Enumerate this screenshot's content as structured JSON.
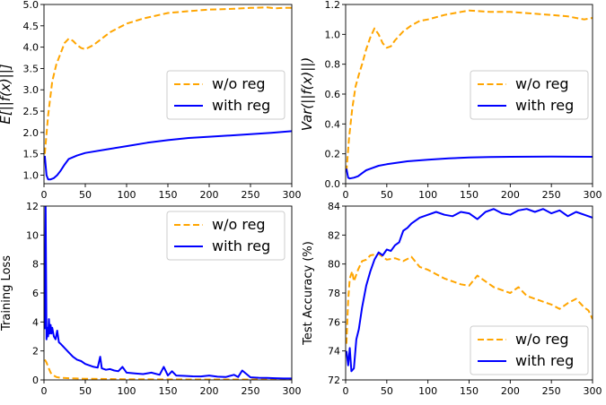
{
  "colors": {
    "wo_reg": "#FFA500",
    "with_reg": "#0000FF"
  },
  "chart_data": [
    {
      "type": "line",
      "panel": "top-left",
      "ylabel": "E[||f(x)||]",
      "xlim": [
        0,
        300
      ],
      "ylim": [
        0.8,
        5.0
      ],
      "xticks": [
        0,
        50,
        100,
        150,
        200,
        250,
        300
      ],
      "yticks": [
        1.0,
        1.5,
        2.0,
        2.5,
        3.0,
        3.5,
        4.0,
        4.5,
        5.0
      ],
      "ytick_labels": [
        "1.0",
        "1.5",
        "2.0",
        "2.5",
        "3.0",
        "3.5",
        "4.0",
        "4.5",
        "5.0"
      ],
      "legend": "center-right",
      "series": [
        {
          "name": "w/o reg",
          "style": "dashed",
          "x": [
            1,
            5,
            10,
            15,
            20,
            25,
            30,
            35,
            40,
            45,
            50,
            60,
            70,
            80,
            100,
            120,
            150,
            180,
            200,
            230,
            250,
            270,
            280,
            290,
            300
          ],
          "y": [
            1.5,
            2.4,
            3.2,
            3.6,
            3.85,
            4.1,
            4.2,
            4.15,
            4.05,
            3.98,
            3.95,
            4.05,
            4.2,
            4.35,
            4.55,
            4.67,
            4.8,
            4.85,
            4.88,
            4.9,
            4.92,
            4.93,
            4.91,
            4.92,
            4.92
          ]
        },
        {
          "name": "with reg",
          "style": "solid",
          "x": [
            1,
            3,
            5,
            8,
            12,
            16,
            20,
            25,
            30,
            40,
            50,
            75,
            100,
            125,
            150,
            175,
            200,
            225,
            250,
            275,
            300
          ],
          "y": [
            1.45,
            1.0,
            0.9,
            0.9,
            0.93,
            1.0,
            1.1,
            1.25,
            1.38,
            1.46,
            1.52,
            1.6,
            1.68,
            1.76,
            1.82,
            1.87,
            1.9,
            1.93,
            1.96,
            1.99,
            2.03
          ]
        }
      ]
    },
    {
      "type": "line",
      "panel": "top-right",
      "ylabel": "Var(||f(x)||)",
      "xlim": [
        0,
        300
      ],
      "ylim": [
        0.0,
        1.2
      ],
      "xticks": [
        0,
        50,
        100,
        150,
        200,
        250,
        300
      ],
      "yticks": [
        0.0,
        0.2,
        0.4,
        0.6,
        0.8,
        1.0,
        1.2
      ],
      "ytick_labels": [
        "0.0",
        "0.2",
        "0.4",
        "0.6",
        "0.8",
        "1.0",
        "1.2"
      ],
      "legend": "center-right",
      "series": [
        {
          "name": "w/o reg",
          "style": "dashed",
          "x": [
            1,
            4,
            8,
            12,
            16,
            20,
            25,
            30,
            35,
            40,
            45,
            50,
            55,
            60,
            70,
            80,
            90,
            100,
            120,
            140,
            150,
            175,
            200,
            225,
            250,
            270,
            290,
            300
          ],
          "y": [
            0.08,
            0.3,
            0.5,
            0.65,
            0.73,
            0.8,
            0.9,
            0.98,
            1.04,
            1.0,
            0.94,
            0.91,
            0.92,
            0.96,
            1.02,
            1.06,
            1.09,
            1.1,
            1.13,
            1.15,
            1.16,
            1.15,
            1.15,
            1.14,
            1.13,
            1.12,
            1.1,
            1.11
          ]
        },
        {
          "name": "with reg",
          "style": "solid",
          "x": [
            1,
            3,
            5,
            10,
            15,
            20,
            25,
            30,
            40,
            50,
            75,
            100,
            125,
            150,
            175,
            200,
            250,
            300
          ],
          "y": [
            0.1,
            0.04,
            0.035,
            0.04,
            0.05,
            0.07,
            0.09,
            0.1,
            0.12,
            0.13,
            0.15,
            0.16,
            0.17,
            0.175,
            0.178,
            0.18,
            0.182,
            0.18
          ]
        }
      ]
    },
    {
      "type": "line",
      "panel": "bottom-left",
      "ylabel": "Training Loss",
      "xlim": [
        0,
        300
      ],
      "ylim": [
        0,
        12
      ],
      "xticks": [
        0,
        50,
        100,
        150,
        200,
        250,
        300
      ],
      "yticks": [
        0,
        2,
        4,
        6,
        8,
        10,
        12
      ],
      "ytick_labels": [
        "0",
        "2",
        "4",
        "6",
        "8",
        "10",
        "12"
      ],
      "legend": "top-right",
      "series": [
        {
          "name": "w/o reg",
          "style": "dashed",
          "x": [
            1,
            3,
            5,
            8,
            10,
            15,
            20,
            30,
            40,
            50,
            75,
            100,
            150,
            200,
            250,
            300
          ],
          "y": [
            1.4,
            1.2,
            0.9,
            0.5,
            0.35,
            0.2,
            0.15,
            0.12,
            0.1,
            0.08,
            0.06,
            0.05,
            0.04,
            0.03,
            0.03,
            0.03
          ]
        },
        {
          "name": "with reg",
          "style": "solid",
          "x": [
            1,
            2,
            3,
            4,
            5,
            6,
            7,
            8,
            9,
            10,
            12,
            14,
            16,
            18,
            20,
            25,
            30,
            35,
            40,
            45,
            50,
            55,
            60,
            65,
            68,
            70,
            75,
            80,
            85,
            90,
            95,
            100,
            110,
            120,
            130,
            140,
            145,
            150,
            155,
            160,
            170,
            180,
            190,
            200,
            210,
            220,
            230,
            235,
            240,
            250,
            260,
            270,
            280,
            290,
            300
          ],
          "y": [
            3.5,
            12.1,
            2.8,
            3.6,
            3.0,
            4.2,
            3.2,
            3.8,
            3.2,
            3.6,
            3.0,
            2.8,
            3.4,
            2.6,
            2.5,
            2.2,
            1.9,
            1.6,
            1.4,
            1.3,
            1.1,
            1.0,
            0.9,
            0.85,
            1.6,
            0.8,
            0.7,
            0.75,
            0.65,
            0.6,
            0.9,
            0.5,
            0.45,
            0.4,
            0.5,
            0.35,
            0.9,
            0.3,
            0.6,
            0.3,
            0.28,
            0.25,
            0.24,
            0.3,
            0.22,
            0.2,
            0.35,
            0.2,
            0.65,
            0.18,
            0.15,
            0.14,
            0.12,
            0.1,
            0.1
          ]
        }
      ]
    },
    {
      "type": "line",
      "panel": "bottom-right",
      "ylabel": "Test Accuracy (%)",
      "xlim": [
        0,
        300
      ],
      "ylim": [
        72,
        84
      ],
      "xticks": [
        0,
        50,
        100,
        150,
        200,
        250,
        300
      ],
      "yticks": [
        72,
        74,
        76,
        78,
        80,
        82,
        84
      ],
      "ytick_labels": [
        "72",
        "74",
        "76",
        "78",
        "80",
        "82",
        "84"
      ],
      "legend": "bottom-right",
      "series": [
        {
          "name": "w/o reg",
          "style": "dashed",
          "x": [
            1,
            3,
            5,
            8,
            10,
            15,
            20,
            25,
            30,
            40,
            50,
            60,
            70,
            80,
            90,
            100,
            110,
            120,
            130,
            140,
            150,
            160,
            170,
            180,
            190,
            200,
            210,
            220,
            230,
            240,
            250,
            260,
            270,
            280,
            290,
            295,
            300
          ],
          "y": [
            74.5,
            77.5,
            79.0,
            79.5,
            78.8,
            79.6,
            80.2,
            80.3,
            80.6,
            80.7,
            80.3,
            80.4,
            80.2,
            80.5,
            79.8,
            79.6,
            79.3,
            79.0,
            78.8,
            78.6,
            78.5,
            79.2,
            78.8,
            78.4,
            78.2,
            78.0,
            78.4,
            77.8,
            77.6,
            77.4,
            77.2,
            76.9,
            77.3,
            77.6,
            77.0,
            76.8,
            76.2
          ]
        },
        {
          "name": "with reg",
          "style": "solid",
          "x": [
            1,
            3,
            5,
            7,
            10,
            13,
            16,
            20,
            25,
            30,
            35,
            40,
            45,
            50,
            55,
            60,
            65,
            70,
            75,
            80,
            90,
            100,
            110,
            120,
            130,
            140,
            150,
            160,
            170,
            180,
            190,
            200,
            210,
            220,
            230,
            240,
            250,
            260,
            270,
            280,
            290,
            300
          ],
          "y": [
            74.0,
            73.0,
            74.2,
            72.6,
            72.8,
            74.8,
            75.5,
            77.0,
            78.5,
            79.5,
            80.3,
            80.8,
            80.6,
            81.0,
            80.9,
            81.3,
            81.5,
            82.3,
            82.5,
            82.8,
            83.2,
            83.4,
            83.6,
            83.4,
            83.3,
            83.6,
            83.5,
            83.1,
            83.6,
            83.8,
            83.5,
            83.4,
            83.7,
            83.8,
            83.6,
            83.8,
            83.5,
            83.7,
            83.3,
            83.6,
            83.4,
            83.2
          ]
        }
      ]
    }
  ]
}
